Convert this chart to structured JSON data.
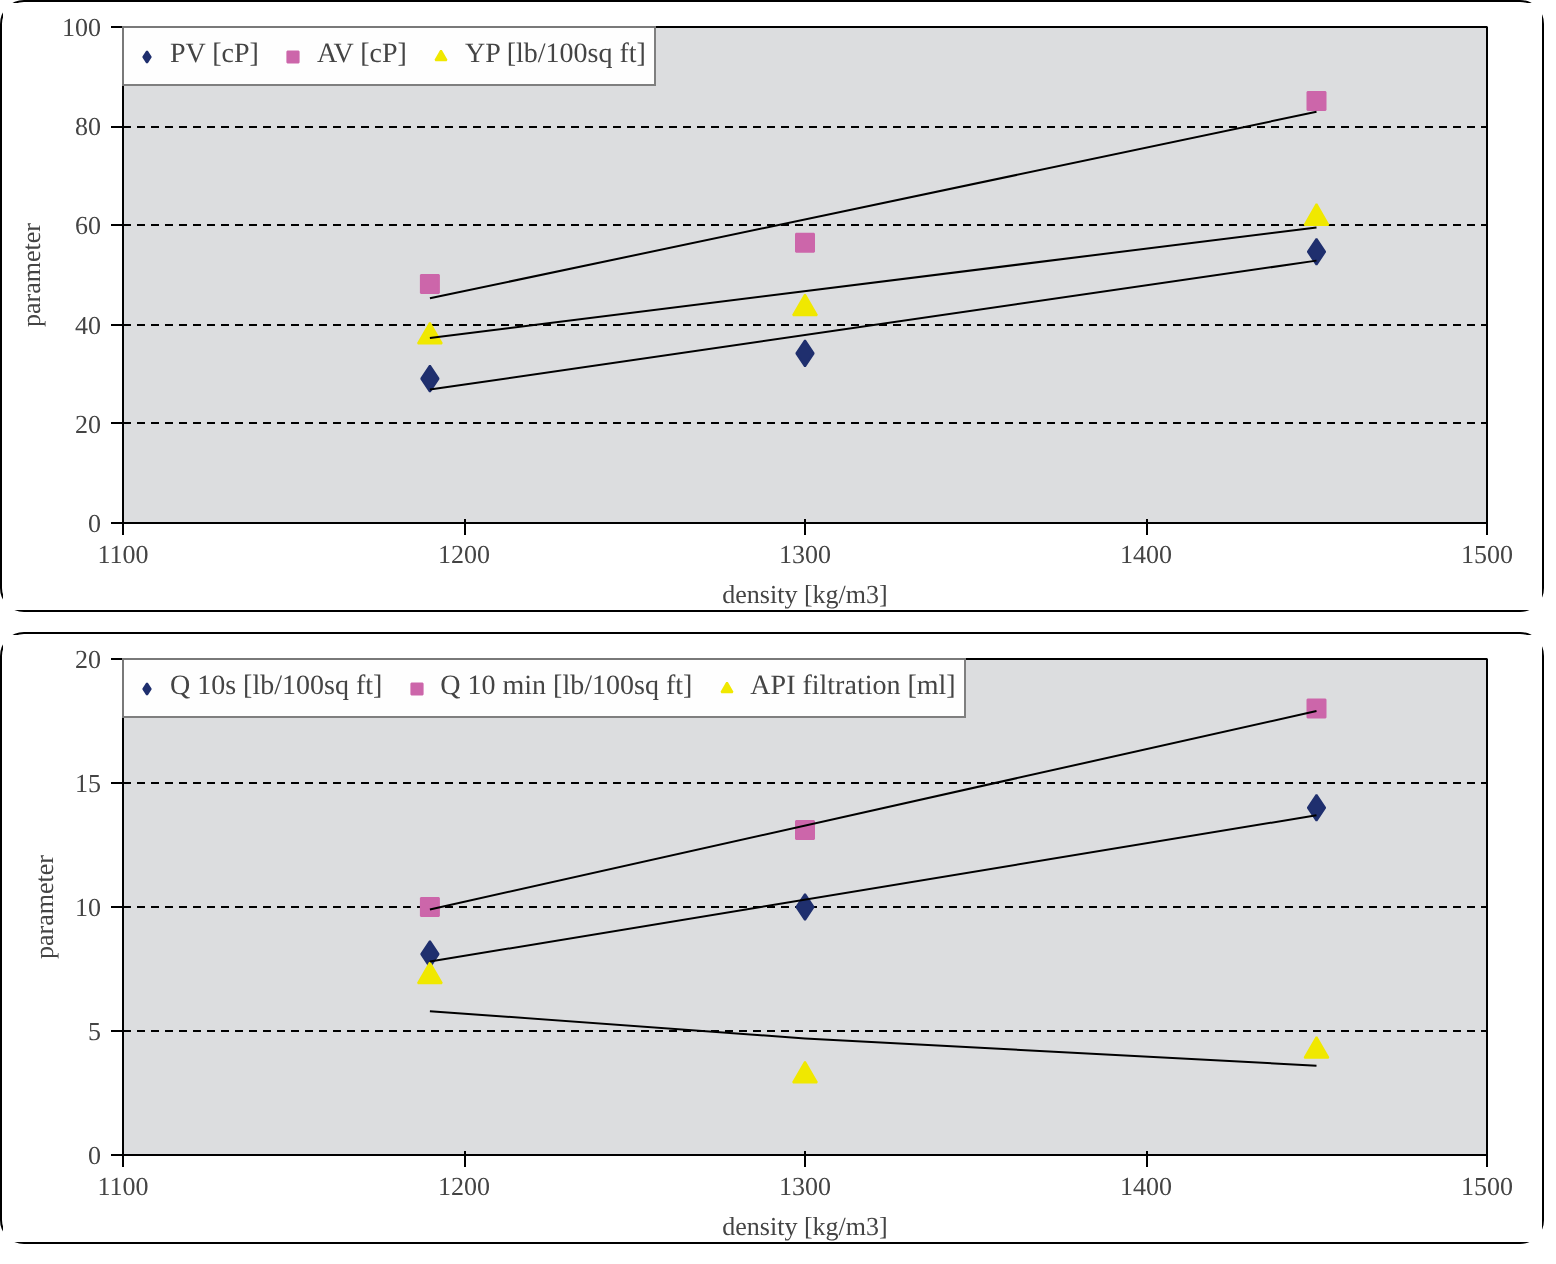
{
  "chart_data": [
    {
      "type": "scatter",
      "xlabel": "density [kg/m3]",
      "ylabel": "parameter",
      "xlim": [
        1100,
        1500
      ],
      "xticks": [
        1100,
        1200,
        1300,
        1400,
        1500
      ],
      "ylim": [
        0,
        100
      ],
      "yticks": [
        0,
        20,
        40,
        60,
        80,
        100
      ],
      "grid": "y",
      "legend": "top",
      "x": [
        1190,
        1300,
        1450
      ],
      "series": [
        {
          "name": "PV [cP]",
          "color": "#1f2f6e",
          "marker": "diamond",
          "values": [
            29.1,
            34.2,
            54.7
          ]
        },
        {
          "name": "AV [cP]",
          "color": "#cc66aa",
          "marker": "square",
          "values": [
            48.2,
            56.5,
            85.1
          ]
        },
        {
          "name": "YP [lb/100sq ft]",
          "color": "#f0e800",
          "marker": "triangle",
          "values": [
            37.6,
            43.3,
            61.5
          ]
        },
        {
          "type": "line",
          "color": "#000000",
          "x": [
            1190,
            1450
          ],
          "values": [
            26.9,
            52.9
          ]
        },
        {
          "type": "line",
          "color": "#000000",
          "x": [
            1190,
            1450
          ],
          "values": [
            45.3,
            82.9
          ]
        },
        {
          "type": "line",
          "color": "#000000",
          "x": [
            1190,
            1450
          ],
          "values": [
            37.3,
            59.6
          ]
        }
      ]
    },
    {
      "type": "scatter",
      "xlabel": "density [kg/m3]",
      "ylabel": "parameter",
      "xlim": [
        1100,
        1500
      ],
      "xticks": [
        1100,
        1200,
        1300,
        1400,
        1500
      ],
      "ylim": [
        0,
        20
      ],
      "yticks": [
        0,
        5,
        10,
        15,
        20
      ],
      "grid": "y",
      "legend": "top",
      "x": [
        1190,
        1300,
        1450
      ],
      "series": [
        {
          "name": "Q 10s [lb/100sq ft]",
          "color": "#1f2f6e",
          "marker": "diamond",
          "values": [
            8.1,
            10.0,
            14.0
          ]
        },
        {
          "name": "Q 10 min [lb/100sq ft]",
          "color": "#cc66aa",
          "marker": "square",
          "values": [
            10.0,
            13.1,
            18.0
          ]
        },
        {
          "name": "API filtration [ml]",
          "color": "#f0e800",
          "marker": "triangle",
          "values": [
            7.2,
            3.2,
            4.2
          ]
        },
        {
          "type": "line",
          "color": "#000000",
          "x": [
            1190,
            1450
          ],
          "values": [
            7.8,
            13.7
          ]
        },
        {
          "type": "line",
          "color": "#000000",
          "x": [
            1190,
            1450
          ],
          "values": [
            9.9,
            17.9
          ]
        },
        {
          "type": "line",
          "color": "#000000",
          "x": [
            1190,
            1300,
            1450
          ],
          "values": [
            5.8,
            4.7,
            3.6
          ]
        }
      ]
    }
  ]
}
